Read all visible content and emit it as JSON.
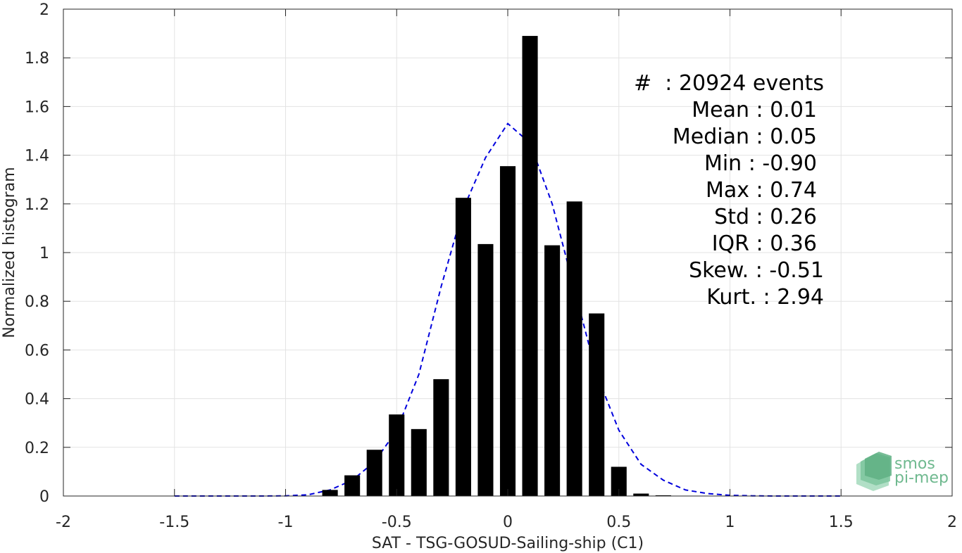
{
  "chart_data": {
    "type": "bar",
    "title": "",
    "xlabel": "SAT - TSG-GOSUD-Sailing-ship (C1)",
    "ylabel": "Normalized histogram",
    "xlim": [
      -2,
      2
    ],
    "ylim": [
      0,
      2
    ],
    "x_ticks": [
      -2,
      -1.5,
      -1,
      -0.5,
      0,
      0.5,
      1,
      1.5,
      2
    ],
    "x_tick_labels": [
      "-2",
      "-1.5",
      "-1",
      "-0.5",
      "0",
      "0.5",
      "1",
      "1.5",
      "2"
    ],
    "y_ticks": [
      0,
      0.2,
      0.4,
      0.6,
      0.8,
      1,
      1.2,
      1.4,
      1.6,
      1.8,
      2
    ],
    "y_tick_labels": [
      "0",
      "0.2",
      "0.4",
      "0.6",
      "0.8",
      "1",
      "1.2",
      "1.4",
      "1.6",
      "1.8",
      "2"
    ],
    "grid": true,
    "bar_color": "#000000",
    "bar_width": 0.07,
    "bars": {
      "x": [
        -0.8,
        -0.7,
        -0.6,
        -0.5,
        -0.4,
        -0.3,
        -0.2,
        -0.1,
        0.0,
        0.1,
        0.2,
        0.3,
        0.4,
        0.5,
        0.6,
        0.7
      ],
      "values": [
        0.025,
        0.085,
        0.19,
        0.335,
        0.275,
        0.48,
        1.225,
        1.035,
        1.355,
        1.89,
        1.03,
        1.21,
        0.75,
        0.12,
        0.01,
        0.003
      ]
    },
    "fit_curve": {
      "color": "#0000dd",
      "style": "dashed",
      "x": [
        -1.5,
        -1.4,
        -1.3,
        -1.2,
        -1.1,
        -1.0,
        -0.9,
        -0.8,
        -0.7,
        -0.6,
        -0.5,
        -0.4,
        -0.3,
        -0.2,
        -0.1,
        0.0,
        0.1,
        0.2,
        0.3,
        0.4,
        0.5,
        0.6,
        0.7,
        0.8,
        0.9,
        1.0,
        1.1,
        1.2,
        1.3,
        1.4,
        1.5
      ],
      "values": [
        0,
        0,
        0,
        0,
        0,
        0.001,
        0.005,
        0.025,
        0.065,
        0.14,
        0.27,
        0.5,
        0.86,
        1.18,
        1.39,
        1.53,
        1.45,
        1.2,
        0.85,
        0.5,
        0.27,
        0.13,
        0.065,
        0.025,
        0.01,
        0.003,
        0.001,
        0,
        0,
        0,
        0
      ]
    },
    "stats_annotation": [
      "#  : 20924 events",
      "Mean : 0.01",
      "Median : 0.05",
      "Min : -0.90",
      "Max : 0.74",
      "Std : 0.26",
      "IQR : 0.36",
      "Skew. : -0.51",
      "Kurt. : 2.94"
    ],
    "logo": {
      "line1": "smos",
      "line2": "pi-mep",
      "color": "#6fb98f"
    }
  }
}
